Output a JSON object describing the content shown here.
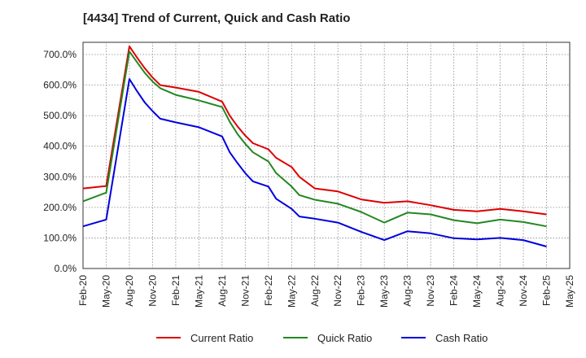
{
  "chart_data": {
    "type": "line",
    "title": "[4434]  Trend of Current, Quick and Cash Ratio",
    "xlabel": "",
    "ylabel": "",
    "ylim": [
      0,
      740
    ],
    "y_ticks": [
      "0.0%",
      "100.0%",
      "200.0%",
      "300.0%",
      "400.0%",
      "500.0%",
      "600.0%",
      "700.0%"
    ],
    "y_tick_values": [
      0,
      100,
      200,
      300,
      400,
      500,
      600,
      700
    ],
    "x_tick_labels": [
      "Feb-20",
      "May-20",
      "Aug-20",
      "Nov-20",
      "Feb-21",
      "May-21",
      "Aug-21",
      "Nov-21",
      "Feb-22",
      "May-22",
      "Aug-22",
      "Nov-22",
      "Feb-23",
      "May-23",
      "Aug-23",
      "Nov-23",
      "Feb-24",
      "May-24",
      "Aug-24",
      "Nov-24",
      "Feb-25",
      "May-25"
    ],
    "x_months": [
      "Feb-20",
      "Mar-20",
      "Apr-20",
      "May-20",
      "Jun-20",
      "Jul-20",
      "Aug-20",
      "Sep-20",
      "Oct-20",
      "Nov-20",
      "Dec-20",
      "Jan-21",
      "Feb-21",
      "Mar-21",
      "Apr-21",
      "May-21",
      "Jun-21",
      "Jul-21",
      "Aug-21",
      "Sep-21",
      "Oct-21",
      "Nov-21",
      "Dec-21",
      "Jan-22",
      "Feb-22",
      "Mar-22",
      "Apr-22",
      "May-22",
      "Jun-22",
      "Jul-22",
      "Aug-22",
      "Sep-22",
      "Oct-22",
      "Nov-22",
      "Dec-22",
      "Jan-23",
      "Feb-23",
      "Mar-23",
      "Apr-23",
      "May-23",
      "Jun-23",
      "Jul-23",
      "Aug-23",
      "Sep-23",
      "Oct-23",
      "Nov-23",
      "Dec-23",
      "Jan-24",
      "Feb-24",
      "Mar-24",
      "Apr-24",
      "May-24",
      "Jun-24",
      "Jul-24",
      "Aug-24",
      "Sep-24",
      "Oct-24",
      "Nov-24",
      "Dec-24",
      "Jan-25",
      "Feb-25",
      "Mar-25",
      "Apr-25",
      "May-25"
    ],
    "grid": true,
    "legend_position": "bottom",
    "series": [
      {
        "name": "Current Ratio",
        "color": "#dd0000",
        "points": [
          [
            "Feb-20",
            262
          ],
          [
            "May-20",
            270
          ],
          [
            "Aug-20",
            727
          ],
          [
            "Sep-20",
            690
          ],
          [
            "Oct-20",
            655
          ],
          [
            "Nov-20",
            625
          ],
          [
            "Dec-20",
            600
          ],
          [
            "Feb-21",
            592
          ],
          [
            "May-21",
            578
          ],
          [
            "Aug-21",
            546
          ],
          [
            "Sep-21",
            500
          ],
          [
            "Oct-21",
            465
          ],
          [
            "Nov-21",
            435
          ],
          [
            "Dec-21",
            410
          ],
          [
            "Feb-22",
            390
          ],
          [
            "Mar-22",
            362
          ],
          [
            "May-22",
            332
          ],
          [
            "Jun-22",
            300
          ],
          [
            "Aug-22",
            262
          ],
          [
            "Nov-22",
            252
          ],
          [
            "Feb-23",
            226
          ],
          [
            "May-23",
            215
          ],
          [
            "Aug-23",
            220
          ],
          [
            "Nov-23",
            207
          ],
          [
            "Feb-24",
            192
          ],
          [
            "May-24",
            187
          ],
          [
            "Aug-24",
            195
          ],
          [
            "Nov-24",
            187
          ],
          [
            "Feb-25",
            177
          ]
        ]
      },
      {
        "name": "Quick Ratio",
        "color": "#228822",
        "points": [
          [
            "Feb-20",
            220
          ],
          [
            "May-20",
            248
          ],
          [
            "Aug-20",
            710
          ],
          [
            "Sep-20",
            675
          ],
          [
            "Oct-20",
            640
          ],
          [
            "Nov-20",
            612
          ],
          [
            "Dec-20",
            590
          ],
          [
            "Feb-21",
            568
          ],
          [
            "May-21",
            550
          ],
          [
            "Aug-21",
            528
          ],
          [
            "Sep-21",
            480
          ],
          [
            "Oct-21",
            440
          ],
          [
            "Nov-21",
            408
          ],
          [
            "Dec-21",
            380
          ],
          [
            "Feb-22",
            350
          ],
          [
            "Mar-22",
            312
          ],
          [
            "May-22",
            268
          ],
          [
            "Jun-22",
            240
          ],
          [
            "Aug-22",
            225
          ],
          [
            "Nov-22",
            212
          ],
          [
            "Feb-23",
            185
          ],
          [
            "May-23",
            150
          ],
          [
            "Aug-23",
            183
          ],
          [
            "Nov-23",
            177
          ],
          [
            "Feb-24",
            158
          ],
          [
            "May-24",
            148
          ],
          [
            "Aug-24",
            160
          ],
          [
            "Nov-24",
            152
          ],
          [
            "Feb-25",
            138
          ]
        ]
      },
      {
        "name": "Cash Ratio",
        "color": "#0000dd",
        "points": [
          [
            "Feb-20",
            138
          ],
          [
            "May-20",
            160
          ],
          [
            "Aug-20",
            620
          ],
          [
            "Sep-20",
            580
          ],
          [
            "Oct-20",
            543
          ],
          [
            "Nov-20",
            515
          ],
          [
            "Dec-20",
            490
          ],
          [
            "Feb-21",
            478
          ],
          [
            "May-21",
            462
          ],
          [
            "Aug-21",
            432
          ],
          [
            "Sep-21",
            380
          ],
          [
            "Oct-21",
            345
          ],
          [
            "Nov-21",
            312
          ],
          [
            "Dec-21",
            285
          ],
          [
            "Feb-22",
            268
          ],
          [
            "Mar-22",
            228
          ],
          [
            "May-22",
            195
          ],
          [
            "Jun-22",
            170
          ],
          [
            "Aug-22",
            163
          ],
          [
            "Nov-22",
            150
          ],
          [
            "Feb-23",
            120
          ],
          [
            "May-23",
            93
          ],
          [
            "Aug-23",
            122
          ],
          [
            "Nov-23",
            115
          ],
          [
            "Feb-24",
            99
          ],
          [
            "May-24",
            95
          ],
          [
            "Aug-24",
            100
          ],
          [
            "Nov-24",
            93
          ],
          [
            "Feb-25",
            72
          ]
        ]
      }
    ]
  }
}
